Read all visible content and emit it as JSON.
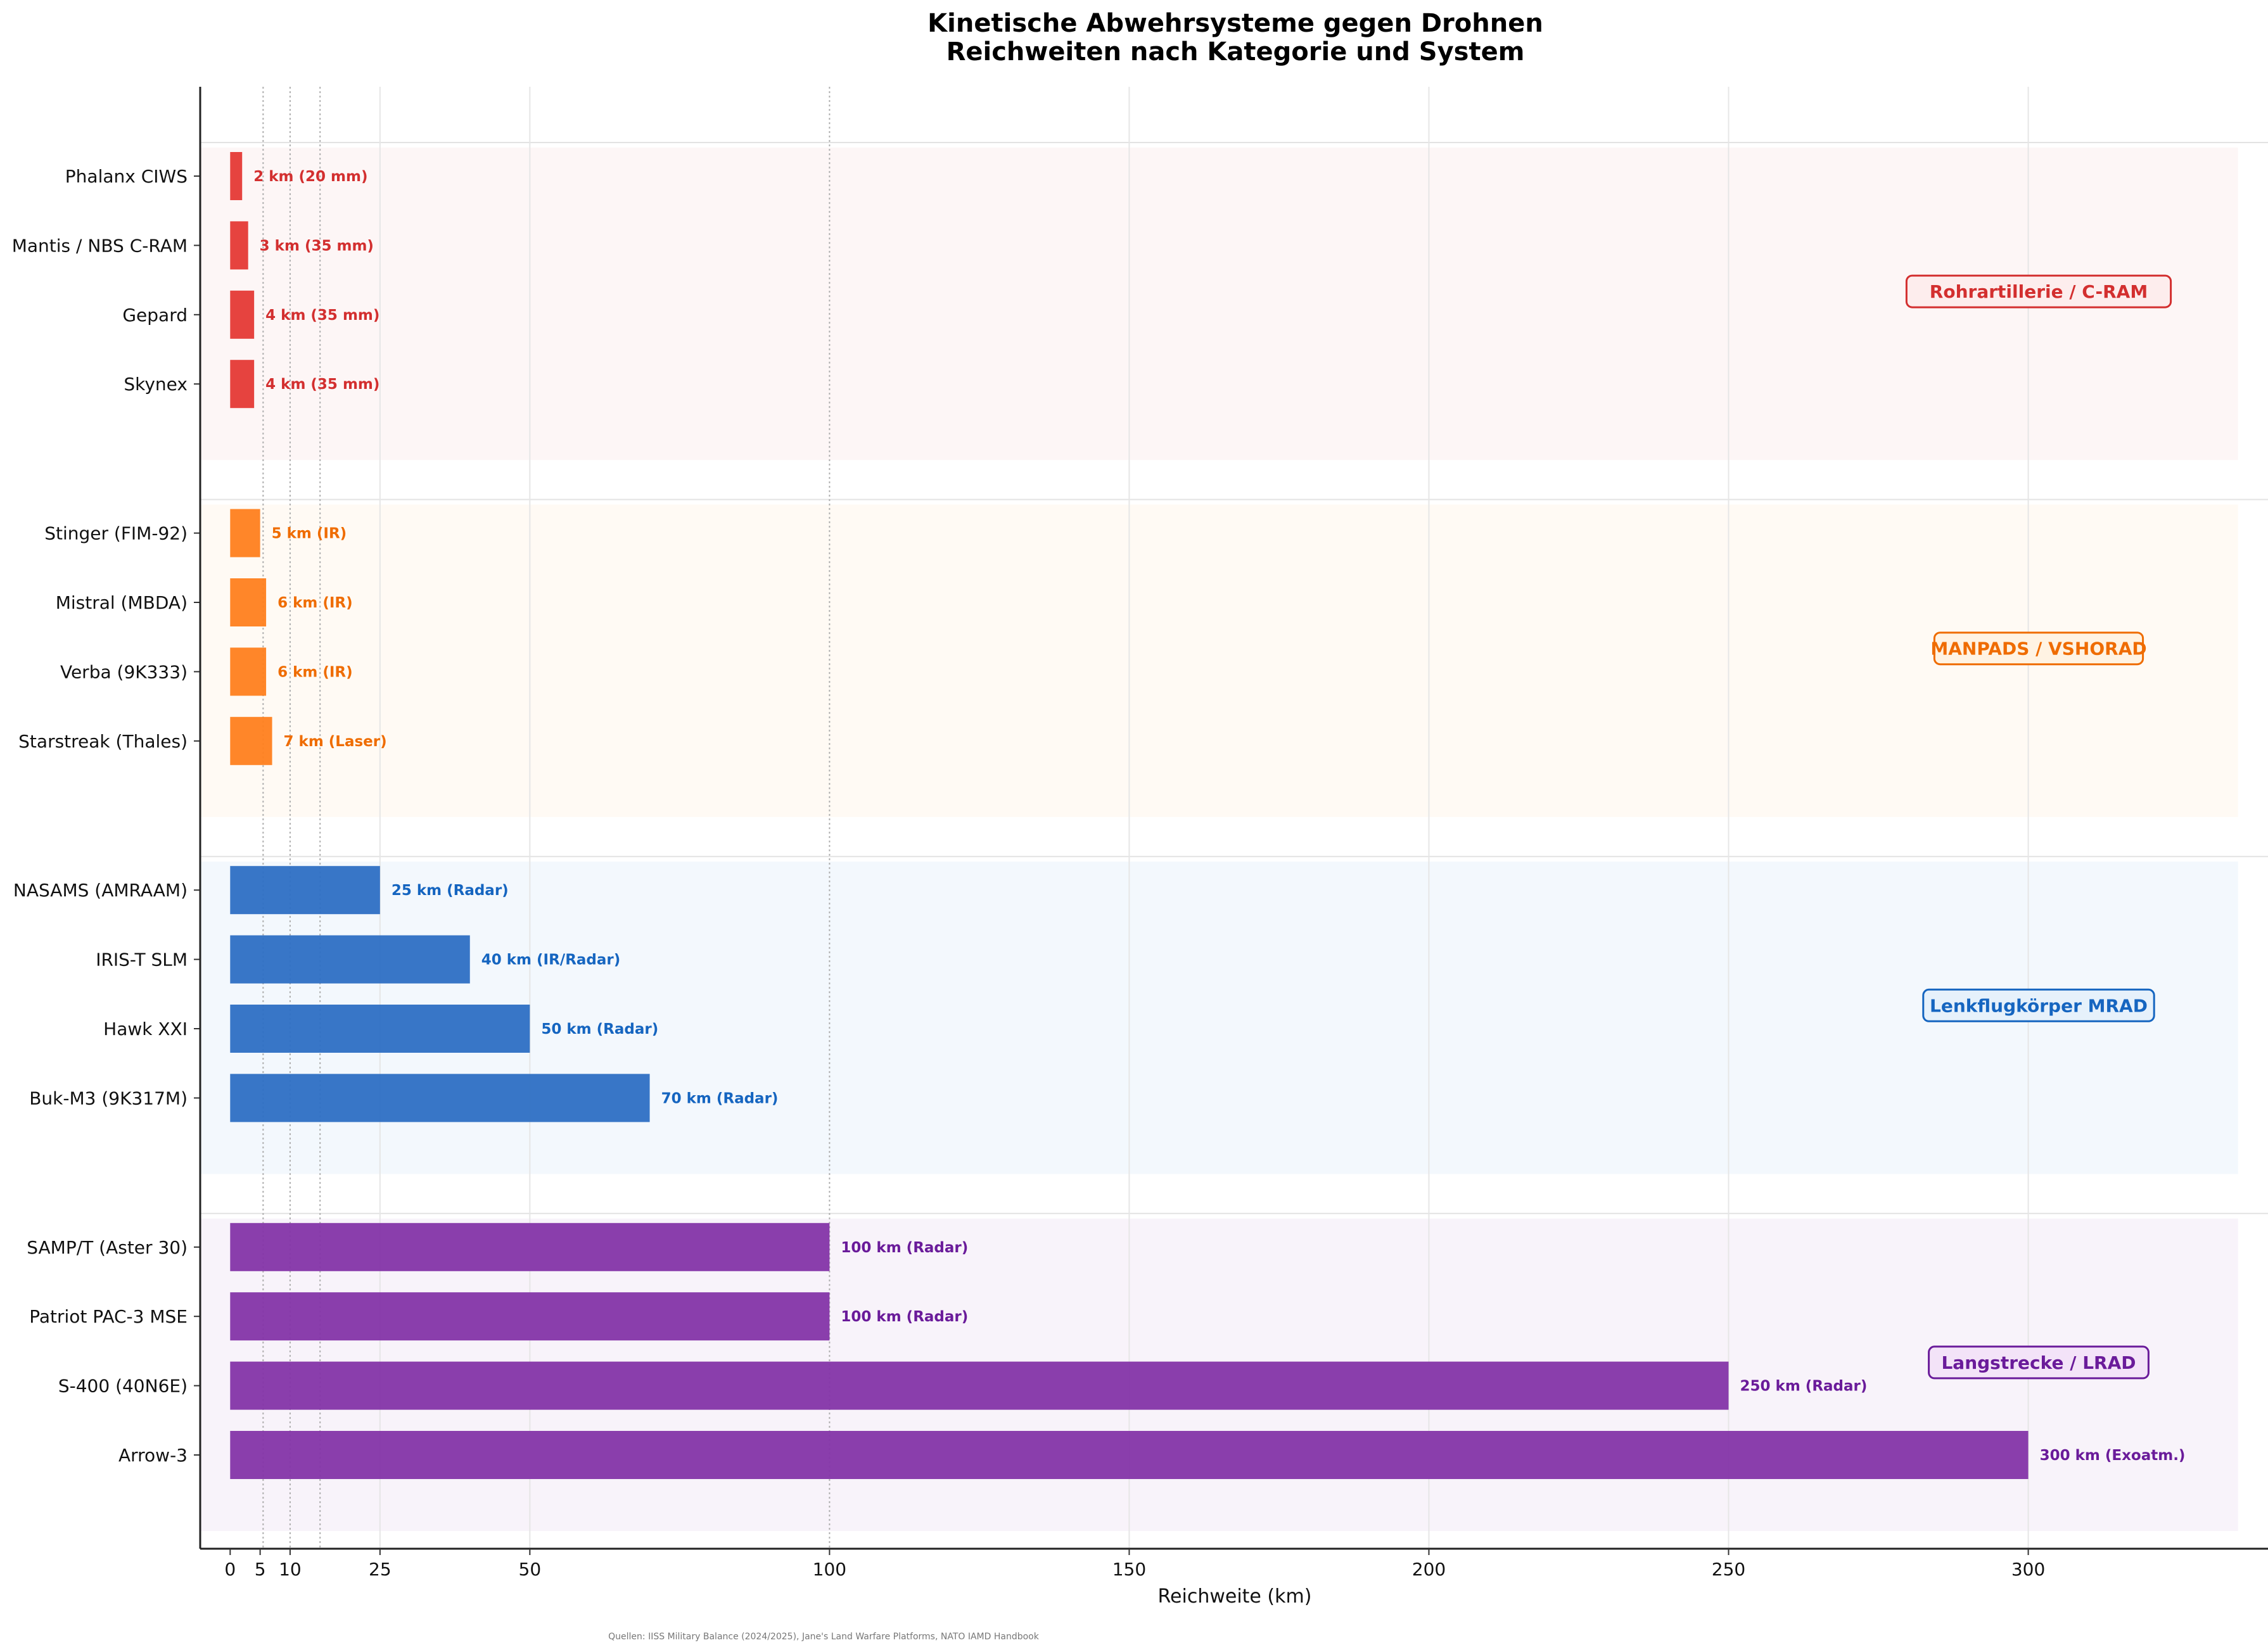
{
  "chart_data": {
    "type": "bar",
    "orientation": "horizontal",
    "title": "Kinetische Abwehrsysteme gegen Drohnen",
    "subtitle": "Reichweiten nach Kategorie und System",
    "xlabel": "Reichweite (km)",
    "ylabel": "",
    "xlim": [
      -5,
      340
    ],
    "xticks": [
      0,
      5,
      10,
      25,
      50,
      100,
      150,
      200,
      250,
      300
    ],
    "reference_lines": [
      5.5,
      10,
      15,
      100
    ],
    "grid": true,
    "source": "Quellen: IISS Military Balance (2024/2025), Jane's Land Warfare Platforms, NATO IAMD Handbook",
    "categories": [
      {
        "name": "Rohrartillerie / C-RAM",
        "color": "#e53935",
        "text_color": "#d32f2f",
        "band_color": "#fdf6f6",
        "systems": [
          {
            "name": "Phalanx CIWS",
            "value": 2,
            "note": "(20 mm)"
          },
          {
            "name": "Mantis / NBS C-RAM",
            "value": 3,
            "note": "(35 mm)"
          },
          {
            "name": "Gepard",
            "value": 4,
            "note": "(35 mm)"
          },
          {
            "name": "Skynex",
            "value": 4,
            "note": "(35 mm)"
          }
        ]
      },
      {
        "name": "MANPADS / VSHORAD",
        "color": "#ff7f1e",
        "text_color": "#ef6c00",
        "band_color": "#fffaf4",
        "systems": [
          {
            "name": "Stinger (FIM-92)",
            "value": 5,
            "note": "(IR)"
          },
          {
            "name": "Mistral (MBDA)",
            "value": 6,
            "note": "(IR)"
          },
          {
            "name": "Verba (9K333)",
            "value": 6,
            "note": "(IR)"
          },
          {
            "name": "Starstreak (Thales)",
            "value": 7,
            "note": "(Laser)"
          }
        ]
      },
      {
        "name": "Lenkflugkörper MRAD",
        "color": "#2d6fc4",
        "text_color": "#1565c0",
        "band_color": "#f3f8fd",
        "systems": [
          {
            "name": "NASAMS (AMRAAM)",
            "value": 25,
            "note": "(Radar)"
          },
          {
            "name": "IRIS-T SLM",
            "value": 40,
            "note": "(IR/Radar)"
          },
          {
            "name": "Hawk XXI",
            "value": 50,
            "note": "(Radar)"
          },
          {
            "name": "Buk-M3 (9K317M)",
            "value": 70,
            "note": "(Radar)"
          }
        ]
      },
      {
        "name": "Langstrecke / LRAD",
        "color": "#8434a8",
        "text_color": "#6a1b9a",
        "band_color": "#f8f3fa",
        "systems": [
          {
            "name": "SAMP/T (Aster 30)",
            "value": 100,
            "note": "(Radar)"
          },
          {
            "name": "Patriot PAC-3 MSE",
            "value": 100,
            "note": "(Radar)"
          },
          {
            "name": "S-400 (40N6E)",
            "value": 250,
            "note": "(Radar)"
          },
          {
            "name": "Arrow-3",
            "value": 300,
            "note": "(Exoatm.)"
          }
        ]
      }
    ]
  }
}
